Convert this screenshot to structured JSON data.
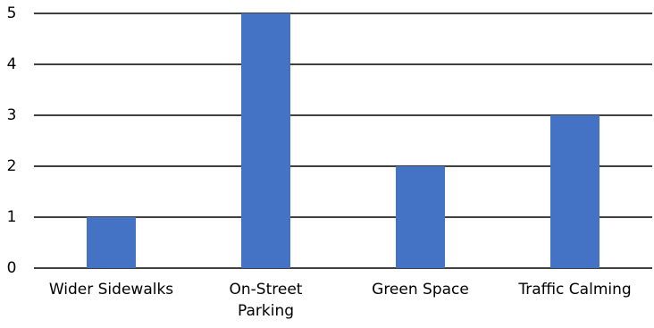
{
  "chart_data": {
    "type": "bar",
    "title": "",
    "xlabel": "",
    "ylabel": "",
    "categories": [
      "Wider Sidewalks",
      "On-Street Parking",
      "Green Space",
      "Traffic Calming"
    ],
    "category_lines": [
      [
        "Wider Sidewalks"
      ],
      [
        "On-Street",
        "Parking"
      ],
      [
        "Green Space"
      ],
      [
        "Traffic Calming"
      ]
    ],
    "values": [
      1,
      5,
      2,
      3
    ],
    "ylim": [
      0,
      5
    ],
    "yticks": [
      "0",
      "1",
      "2",
      "3",
      "4",
      "5"
    ],
    "grid": true,
    "legend": "none",
    "bar_color": "#4472C4",
    "gridline_color": "#000000"
  }
}
